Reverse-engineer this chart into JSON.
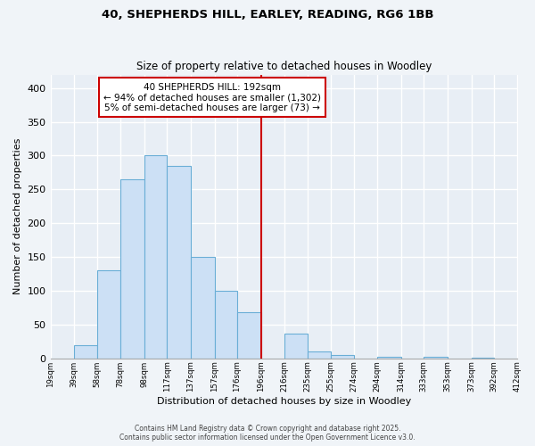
{
  "title_line1": "40, SHEPHERDS HILL, EARLEY, READING, RG6 1BB",
  "title_line2": "Size of property relative to detached houses in Woodley",
  "xlabel": "Distribution of detached houses by size in Woodley",
  "ylabel": "Number of detached properties",
  "bar_edges": [
    19,
    39,
    58,
    78,
    98,
    117,
    137,
    157,
    176,
    196,
    216,
    235,
    255,
    274,
    294,
    314,
    333,
    353,
    373,
    392,
    412
  ],
  "bar_heights": [
    0,
    20,
    130,
    265,
    300,
    285,
    150,
    100,
    68,
    0,
    37,
    10,
    5,
    0,
    3,
    0,
    2,
    0,
    1,
    0,
    0
  ],
  "bar_color": "#cce0f5",
  "bar_edgecolor": "#6aaed6",
  "vline_x": 196,
  "vline_color": "#cc0000",
  "annotation_title": "40 SHEPHERDS HILL: 192sqm",
  "annotation_line2": "← 94% of detached houses are smaller (1,302)",
  "annotation_line3": "5% of semi-detached houses are larger (73) →",
  "annotation_box_edgecolor": "#cc0000",
  "ylim": [
    0,
    420
  ],
  "yticks": [
    0,
    50,
    100,
    150,
    200,
    250,
    300,
    350,
    400
  ],
  "xtick_labels": [
    "19sqm",
    "39sqm",
    "58sqm",
    "78sqm",
    "98sqm",
    "117sqm",
    "137sqm",
    "157sqm",
    "176sqm",
    "196sqm",
    "216sqm",
    "235sqm",
    "255sqm",
    "274sqm",
    "294sqm",
    "314sqm",
    "333sqm",
    "353sqm",
    "373sqm",
    "392sqm",
    "412sqm"
  ],
  "footer_line1": "Contains HM Land Registry data © Crown copyright and database right 2025.",
  "footer_line2": "Contains public sector information licensed under the Open Government Licence v3.0.",
  "bg_color": "#f0f4f8",
  "plot_bg_color": "#e8eef5",
  "grid_color": "#ffffff"
}
